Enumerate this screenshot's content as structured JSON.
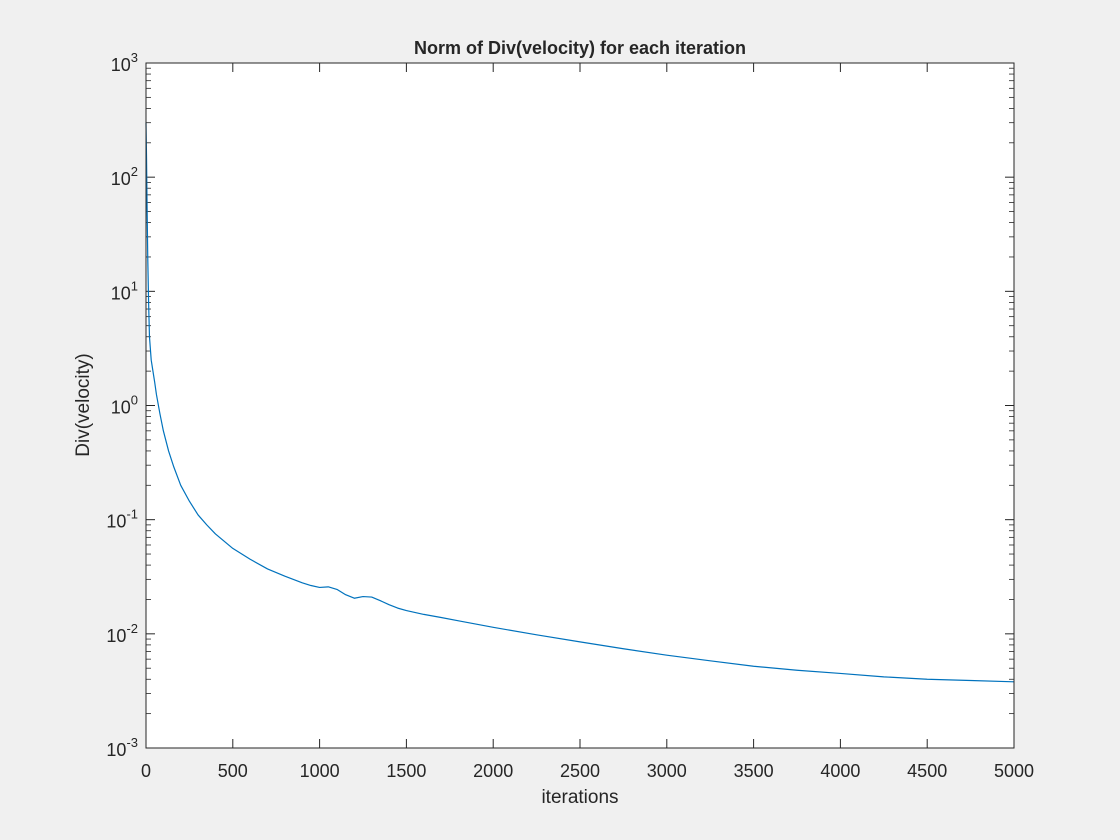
{
  "chart_data": {
    "type": "line",
    "title": "Norm of Div(velocity) for each iteration",
    "xlabel": "iterations",
    "ylabel": "Div(velocity)",
    "xlim": [
      0,
      5000
    ],
    "ylim": [
      0.001,
      1000
    ],
    "yscale": "log",
    "grid": false,
    "legend": "none",
    "x_ticks": [
      0,
      500,
      1000,
      1500,
      2000,
      2500,
      3000,
      3500,
      4000,
      4500,
      5000
    ],
    "y_ticks": [
      {
        "base": "10",
        "exp": "-3",
        "value": 0.001
      },
      {
        "base": "10",
        "exp": "-2",
        "value": 0.01
      },
      {
        "base": "10",
        "exp": "-1",
        "value": 0.1
      },
      {
        "base": "10",
        "exp": "0",
        "value": 1
      },
      {
        "base": "10",
        "exp": "1",
        "value": 10
      },
      {
        "base": "10",
        "exp": "2",
        "value": 100
      },
      {
        "base": "10",
        "exp": "3",
        "value": 1000
      }
    ],
    "colors": {
      "line": "#0072bd",
      "axes": "#262626",
      "plot_bg": "#ffffff",
      "figure_bg": "#f0f0f0"
    },
    "series": [
      {
        "x": [
          0,
          3,
          6,
          10,
          15,
          20,
          30,
          40,
          50,
          60,
          80,
          100,
          130,
          160,
          200,
          250,
          300,
          350,
          400,
          500,
          600,
          700,
          800,
          900,
          950,
          1000,
          1050,
          1100,
          1150,
          1200,
          1250,
          1300,
          1350,
          1400,
          1450,
          1500,
          1600,
          1700,
          1800,
          2000,
          2250,
          2500,
          2750,
          3000,
          3250,
          3500,
          3750,
          4000,
          4250,
          4500,
          4750,
          5000
        ],
        "y": [
          300,
          150,
          60,
          20,
          8,
          4,
          2.5,
          2.0,
          1.6,
          1.25,
          0.85,
          0.6,
          0.4,
          0.29,
          0.2,
          0.145,
          0.11,
          0.09,
          0.075,
          0.056,
          0.045,
          0.037,
          0.032,
          0.028,
          0.0265,
          0.0255,
          0.0258,
          0.0245,
          0.022,
          0.0205,
          0.0212,
          0.021,
          0.0195,
          0.018,
          0.0168,
          0.016,
          0.0148,
          0.0139,
          0.013,
          0.0114,
          0.0098,
          0.0085,
          0.0074,
          0.0065,
          0.0058,
          0.0052,
          0.0048,
          0.0045,
          0.0042,
          0.004,
          0.0039,
          0.0038
        ]
      }
    ]
  }
}
